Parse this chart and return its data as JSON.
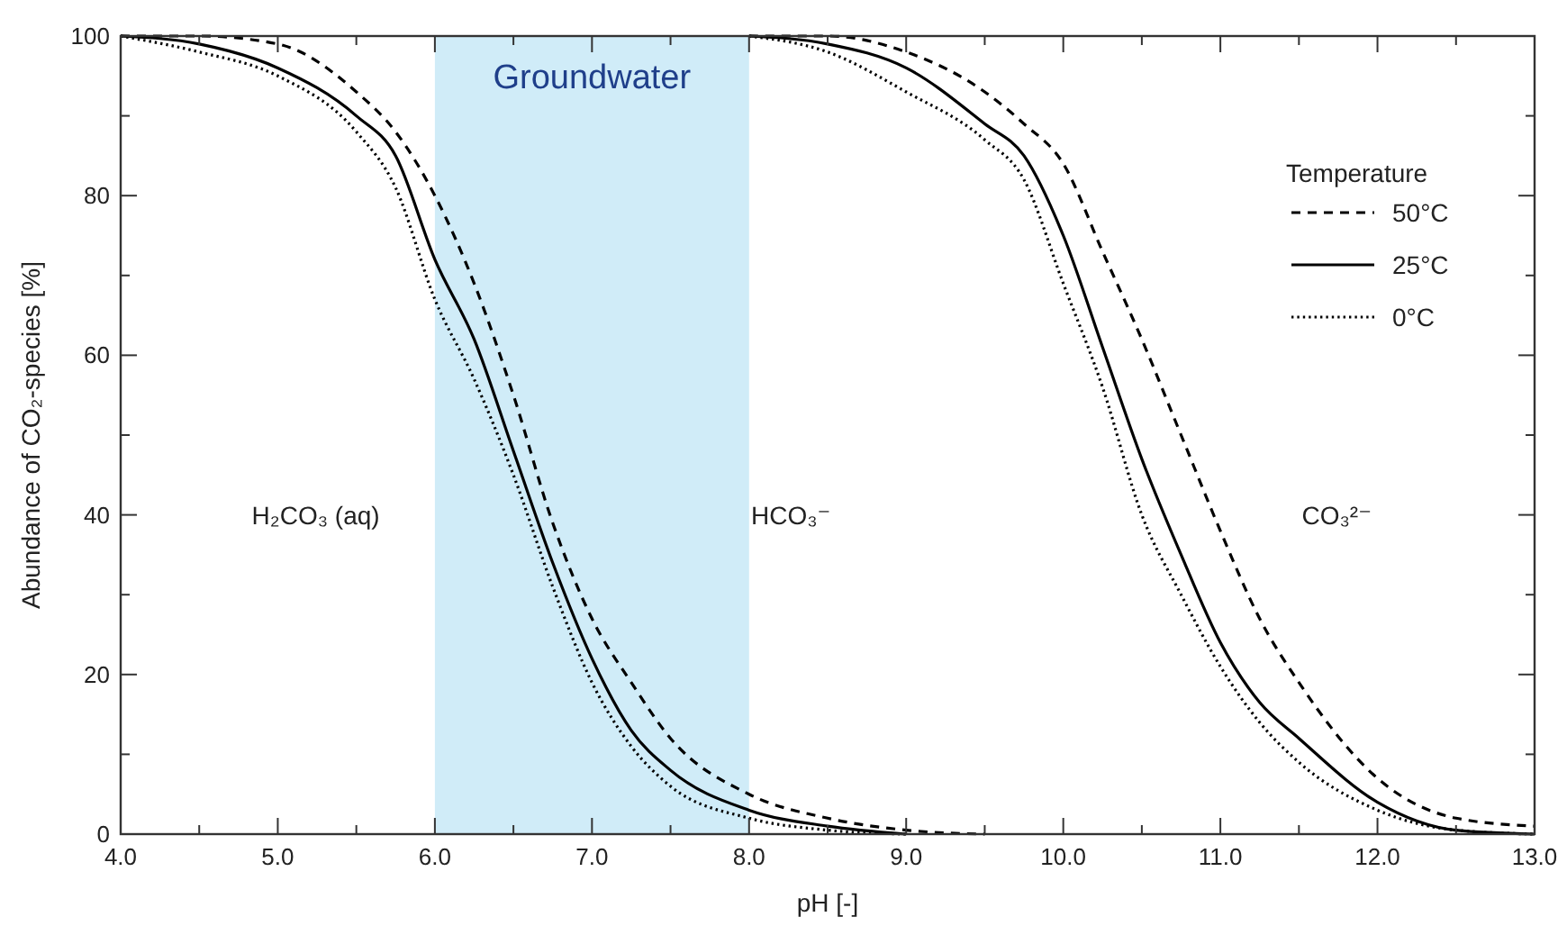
{
  "chart_data": {
    "type": "line",
    "xlabel": "pH [-]",
    "ylabel": "Abundance of CO₂-species [%]",
    "legend_title": "Temperature",
    "legend": "top right",
    "grid": false,
    "xlim": [
      4,
      13
    ],
    "xticks": [
      {
        "value": 4,
        "label": "4.0"
      },
      {
        "value": 4.5,
        "label": null
      },
      {
        "value": 5,
        "label": "5.0"
      },
      {
        "value": 5.5,
        "label": null
      },
      {
        "value": 6,
        "label": "6.0"
      },
      {
        "value": 6.5,
        "label": null
      },
      {
        "value": 7,
        "label": "7.0"
      },
      {
        "value": 7.5,
        "label": null
      },
      {
        "value": 8,
        "label": "8.0"
      },
      {
        "value": 8.5,
        "label": null
      },
      {
        "value": 9,
        "label": "9.0"
      },
      {
        "value": 9.5,
        "label": null
      },
      {
        "value": 10,
        "label": "10.0"
      },
      {
        "value": 10.5,
        "label": null
      },
      {
        "value": 11,
        "label": "11.0"
      },
      {
        "value": 11.5,
        "label": null
      },
      {
        "value": 12,
        "label": "12.0"
      },
      {
        "value": 12.5,
        "label": null
      },
      {
        "value": 13,
        "label": "13.0"
      }
    ],
    "ylim": [
      0,
      100
    ],
    "yticks": [
      0,
      {
        "value": 10,
        "label": null
      },
      20,
      {
        "value": 30,
        "label": null
      },
      40,
      {
        "value": 50,
        "label": null
      },
      60,
      {
        "value": 70,
        "label": null
      },
      80,
      {
        "value": 90,
        "label": null
      },
      100
    ],
    "bands": [
      {
        "axis": "x",
        "from": 6,
        "to": 8,
        "label": "Groundwater",
        "color": "#d0ecf8"
      }
    ],
    "annotations": [
      "H₂CO₃ (aq)",
      "HCO₃⁻",
      "CO₃²⁻"
    ],
    "series": [
      {
        "name": "50°C",
        "color": "#000000",
        "line_style": "dashed",
        "x": [
          4,
          4.5,
          5,
          5.5,
          5.75,
          6,
          6.25,
          6.5,
          6.75,
          7,
          7.25,
          7.5,
          8,
          8.5,
          9,
          9.5
        ],
        "values": [
          100,
          100,
          99,
          93,
          88,
          80,
          69,
          55,
          39,
          27,
          19,
          12,
          5,
          2,
          0.5,
          0
        ]
      },
      {
        "name": "25°C",
        "color": "#000000",
        "line_style": "solid",
        "x": [
          4,
          4.5,
          5,
          5.5,
          5.75,
          6,
          6.25,
          6.5,
          6.75,
          7,
          7.25,
          7.5,
          8,
          8.5,
          9
        ],
        "values": [
          100,
          99,
          96,
          90,
          85,
          72,
          62,
          48,
          34,
          22,
          13,
          8,
          3,
          1,
          0
        ]
      },
      {
        "name": "0°C",
        "color": "#000000",
        "line_style": "dotted",
        "x": [
          4,
          4.5,
          5,
          5.5,
          5.75,
          6,
          6.25,
          6.5,
          6.75,
          7,
          7.25,
          7.5,
          8,
          8.5,
          9
        ],
        "values": [
          100,
          98,
          95,
          88,
          81,
          67,
          57,
          45,
          31,
          19,
          11,
          6,
          2,
          0.5,
          0
        ]
      },
      {
        "color": "#000000",
        "line_style": "dashed",
        "x": [
          8,
          8.5,
          9,
          9.5,
          9.75,
          10,
          10.25,
          10.5,
          10.75,
          11,
          11.25,
          11.5,
          12,
          12.5,
          13
        ],
        "values": [
          100,
          100,
          98,
          93,
          89,
          84,
          73,
          62,
          50,
          38,
          27,
          19,
          7,
          2,
          1
        ]
      },
      {
        "color": "#000000",
        "line_style": "solid",
        "x": [
          8,
          8.5,
          9,
          9.5,
          9.75,
          10,
          10.25,
          10.5,
          10.75,
          11,
          11.25,
          11.5,
          12,
          12.5,
          13
        ],
        "values": [
          100,
          99,
          96,
          89,
          85,
          75,
          61,
          47,
          35,
          24,
          16.5,
          12,
          4,
          0.5,
          0
        ]
      },
      {
        "color": "#000000",
        "line_style": "dotted",
        "x": [
          8,
          8.5,
          9,
          9.5,
          9.75,
          10,
          10.25,
          10.5,
          10.75,
          11,
          11.25,
          11.5,
          12,
          12.5,
          13
        ],
        "values": [
          100,
          98,
          93,
          87,
          82,
          69,
          56,
          40,
          30,
          21,
          14,
          9,
          3,
          0.5,
          0
        ]
      }
    ]
  }
}
